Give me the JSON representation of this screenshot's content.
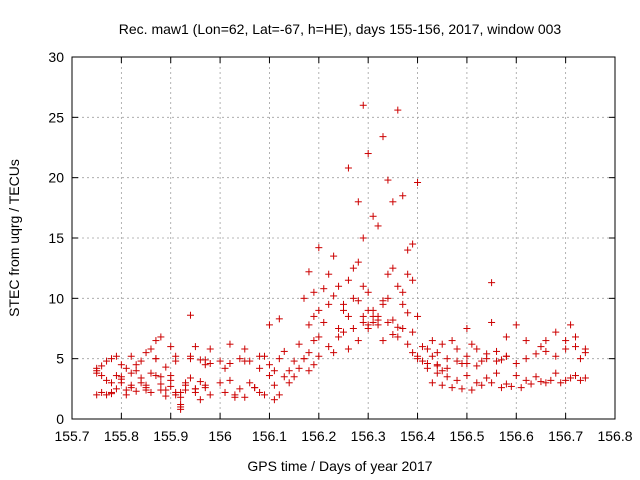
{
  "chart_data": {
    "type": "scatter",
    "title": "Rec. maw1 (Lon=62, Lat=-67, h=HE), days 155-156, 2017, window 003",
    "xlabel": "GPS time / Days of year 2017",
    "ylabel": "STEC from uqrg / TECUs",
    "xlim": [
      155.7,
      156.8
    ],
    "ylim": [
      0,
      30
    ],
    "xticks": [
      "155.7",
      "155.8",
      "155.9",
      "156",
      "156.1",
      "156.2",
      "156.3",
      "156.4",
      "156.5",
      "156.6",
      "156.7",
      "156.8"
    ],
    "yticks": [
      "0",
      "5",
      "10",
      "15",
      "20",
      "25",
      "30"
    ],
    "grid": true,
    "marker": "+",
    "color": "#cc0000",
    "series": [
      {
        "x": [
          155.75,
          155.75,
          155.75,
          155.76,
          155.77,
          155.78,
          155.79,
          155.8,
          155.81,
          155.82,
          155.83,
          155.84,
          155.85,
          155.86,
          155.87,
          155.88,
          155.89,
          155.9,
          155.91,
          155.92,
          155.93,
          155.94,
          155.95,
          155.96,
          155.97,
          155.98,
          155.75,
          155.76,
          155.77,
          155.78,
          155.79,
          155.8,
          155.81,
          155.82,
          155.83,
          155.84,
          155.85,
          155.86,
          155.87,
          155.88,
          155.89,
          155.9,
          155.91,
          155.92,
          155.93,
          155.94,
          155.95,
          155.96,
          155.97,
          155.98,
          155.76,
          155.78,
          155.8,
          155.82,
          155.84,
          155.86,
          155.88,
          155.9,
          155.92,
          155.94,
          155.96,
          155.98,
          155.77,
          155.79,
          155.81,
          155.83,
          155.85,
          155.87,
          155.89,
          155.91,
          155.93,
          155.95,
          155.97,
          155.78,
          155.8,
          155.82,
          155.85,
          155.87,
          155.88,
          155.9,
          155.92,
          155.95,
          155.97,
          155.92,
          155.94,
          155.91,
          156.0,
          156.01,
          156.02,
          156.03,
          156.04,
          156.05,
          156.06,
          156.07,
          156.08,
          156.09,
          156.1,
          156.11,
          156.12,
          156.0,
          156.02,
          156.04,
          156.06,
          156.08,
          156.1,
          156.12,
          156.01,
          156.03,
          156.05,
          156.07,
          156.09,
          156.11,
          156.02,
          156.05,
          156.08,
          156.11,
          156.1,
          156.12,
          156.13,
          156.14,
          156.15,
          156.16,
          156.17,
          156.18,
          156.19,
          156.2,
          156.13,
          156.14,
          156.15,
          156.16,
          156.17,
          156.18,
          156.19,
          156.2,
          156.21,
          156.22,
          156.23,
          156.24,
          156.25,
          156.26,
          156.27,
          156.28,
          156.29,
          156.17,
          156.18,
          156.19,
          156.2,
          156.21,
          156.22,
          156.23,
          156.24,
          156.25,
          156.26,
          156.27,
          156.28,
          156.29,
          156.3,
          156.18,
          156.19,
          156.2,
          156.22,
          156.23,
          156.24,
          156.25,
          156.26,
          156.27,
          156.28,
          156.29,
          156.26,
          156.28,
          156.29,
          156.3,
          156.31,
          156.32,
          156.33,
          156.34,
          156.35,
          156.36,
          156.37,
          156.38,
          156.39,
          156.4,
          156.3,
          156.31,
          156.32,
          156.33,
          156.34,
          156.35,
          156.36,
          156.37,
          156.38,
          156.39,
          156.29,
          156.3,
          156.31,
          156.32,
          156.33,
          156.34,
          156.35,
          156.36,
          156.37,
          156.38,
          156.39,
          156.4,
          156.3,
          156.31,
          156.32,
          156.33,
          156.34,
          156.35,
          156.36,
          156.37,
          156.38,
          156.39,
          156.4,
          156.41,
          156.42,
          156.43,
          156.44,
          156.45,
          156.4,
          156.41,
          156.42,
          156.43,
          156.44,
          156.45,
          156.46,
          156.47,
          156.48,
          156.49,
          156.5,
          156.51,
          156.52,
          156.53,
          156.54,
          156.55,
          156.56,
          156.57,
          156.58,
          156.42,
          156.44,
          156.46,
          156.48,
          156.5,
          156.52,
          156.54,
          156.56,
          156.58,
          156.6,
          156.62,
          156.64,
          156.66,
          156.68,
          156.7,
          156.72,
          156.74,
          156.43,
          156.45,
          156.47,
          156.49,
          156.51,
          156.53,
          156.55,
          156.57,
          156.59,
          156.61,
          156.63,
          156.65,
          156.67,
          156.69,
          156.71,
          156.73,
          156.44,
          156.46,
          156.48,
          156.5,
          156.52,
          156.54,
          156.56,
          156.58,
          156.6,
          156.62,
          156.64,
          156.66,
          156.68,
          156.7,
          156.72,
          156.74,
          156.5,
          156.55,
          156.58,
          156.6,
          156.62,
          156.65,
          156.7,
          156.72,
          156.74,
          156.66,
          156.68,
          156.71,
          156.73
        ],
        "y": [
          3.8,
          2.0,
          4.2,
          2.2,
          3.2,
          2.1,
          2.5,
          4.5,
          2.0,
          3.8,
          2.3,
          4.8,
          2.6,
          2.2,
          5.0,
          2.4,
          1.9,
          3.6,
          2.0,
          1.2,
          2.4,
          3.4,
          2.5,
          1.6,
          2.8,
          2.0,
          4.0,
          3.6,
          4.8,
          3.0,
          5.2,
          3.3,
          4.2,
          2.8,
          4.5,
          3.0,
          5.5,
          3.8,
          5.0,
          2.9,
          4.3,
          2.7,
          4.8,
          1.0,
          2.8,
          5.2,
          2.2,
          4.9,
          2.6,
          5.8,
          4.4,
          5.0,
          3.0,
          5.2,
          3.4,
          5.8,
          3.5,
          6.0,
          2.2,
          5.0,
          3.1,
          4.6,
          2.0,
          3.6,
          2.4,
          4.0,
          2.8,
          6.5,
          2.4,
          5.2,
          3.0,
          2.5,
          4.9,
          2.2,
          3.5,
          2.6,
          2.4,
          3.6,
          6.8,
          3.2,
          1.8,
          6.0,
          4.5,
          0.8,
          8.6,
          2.2,
          4.8,
          2.2,
          4.6,
          2.0,
          5.0,
          1.8,
          4.8,
          2.6,
          5.2,
          2.0,
          4.5,
          1.6,
          5.0,
          3.0,
          3.2,
          2.5,
          3.0,
          2.2,
          3.6,
          2.0,
          4.2,
          1.8,
          4.8,
          2.6,
          5.2,
          2.8,
          6.2,
          5.8,
          4.2,
          4.0,
          7.8,
          8.3,
          3.5,
          4.0,
          4.8,
          6.2,
          5.0,
          5.5,
          6.5,
          6.8,
          5.6,
          3.0,
          3.5,
          4.2,
          10.0,
          12.2,
          10.5,
          14.2,
          10.8,
          12.0,
          13.5,
          11.0,
          9.5,
          11.5,
          12.5,
          13.0,
          15.0,
          5.0,
          7.8,
          8.5,
          9.0,
          8.0,
          9.5,
          10.2,
          7.5,
          9.0,
          8.5,
          10.0,
          9.8,
          8.5,
          10.5,
          4.0,
          4.5,
          5.2,
          6.0,
          5.5,
          6.8,
          7.2,
          5.8,
          7.5,
          6.5,
          8.0,
          20.8,
          18.0,
          26.0,
          22.0,
          16.8,
          16.0,
          23.4,
          19.8,
          18.0,
          25.6,
          18.5,
          14.0,
          14.5,
          19.6,
          9.0,
          8.5,
          7.8,
          9.5,
          12.0,
          12.5,
          11.0,
          10.5,
          12.0,
          11.5,
          11.0,
          7.5,
          8.0,
          8.5,
          9.8,
          10.0,
          8.2,
          7.6,
          9.5,
          8.8,
          7.2,
          8.5,
          7.8,
          9.0,
          8.2,
          6.5,
          8.0,
          7.0,
          6.8,
          7.5,
          6.2,
          5.5,
          5.0,
          4.8,
          4.6,
          5.2,
          4.4,
          4.0,
          5.2,
          6.0,
          5.8,
          6.5,
          5.5,
          6.2,
          5.0,
          6.5,
          5.8,
          4.6,
          5.2,
          6.2,
          5.8,
          4.8,
          5.4,
          8.0,
          5.6,
          4.9,
          5.2,
          4.2,
          3.8,
          3.5,
          3.2,
          3.6,
          3.0,
          3.4,
          3.8,
          2.9,
          3.6,
          3.2,
          3.5,
          3.0,
          3.8,
          3.2,
          3.6,
          3.4,
          3.0,
          2.8,
          2.6,
          2.5,
          2.4,
          2.8,
          3.0,
          2.6,
          2.7,
          2.6,
          2.9,
          3.1,
          3.2,
          3.0,
          3.4,
          3.2,
          4.5,
          4.2,
          4.8,
          4.6,
          4.4,
          5.0,
          4.8,
          5.2,
          4.6,
          5.0,
          5.4,
          5.6,
          5.2,
          5.8,
          6.0,
          5.5,
          7.5,
          11.3,
          6.8,
          7.8,
          6.5,
          6.0,
          6.5,
          6.8,
          5.8,
          6.5,
          7.2,
          7.8,
          5.0
        ]
      }
    ]
  }
}
